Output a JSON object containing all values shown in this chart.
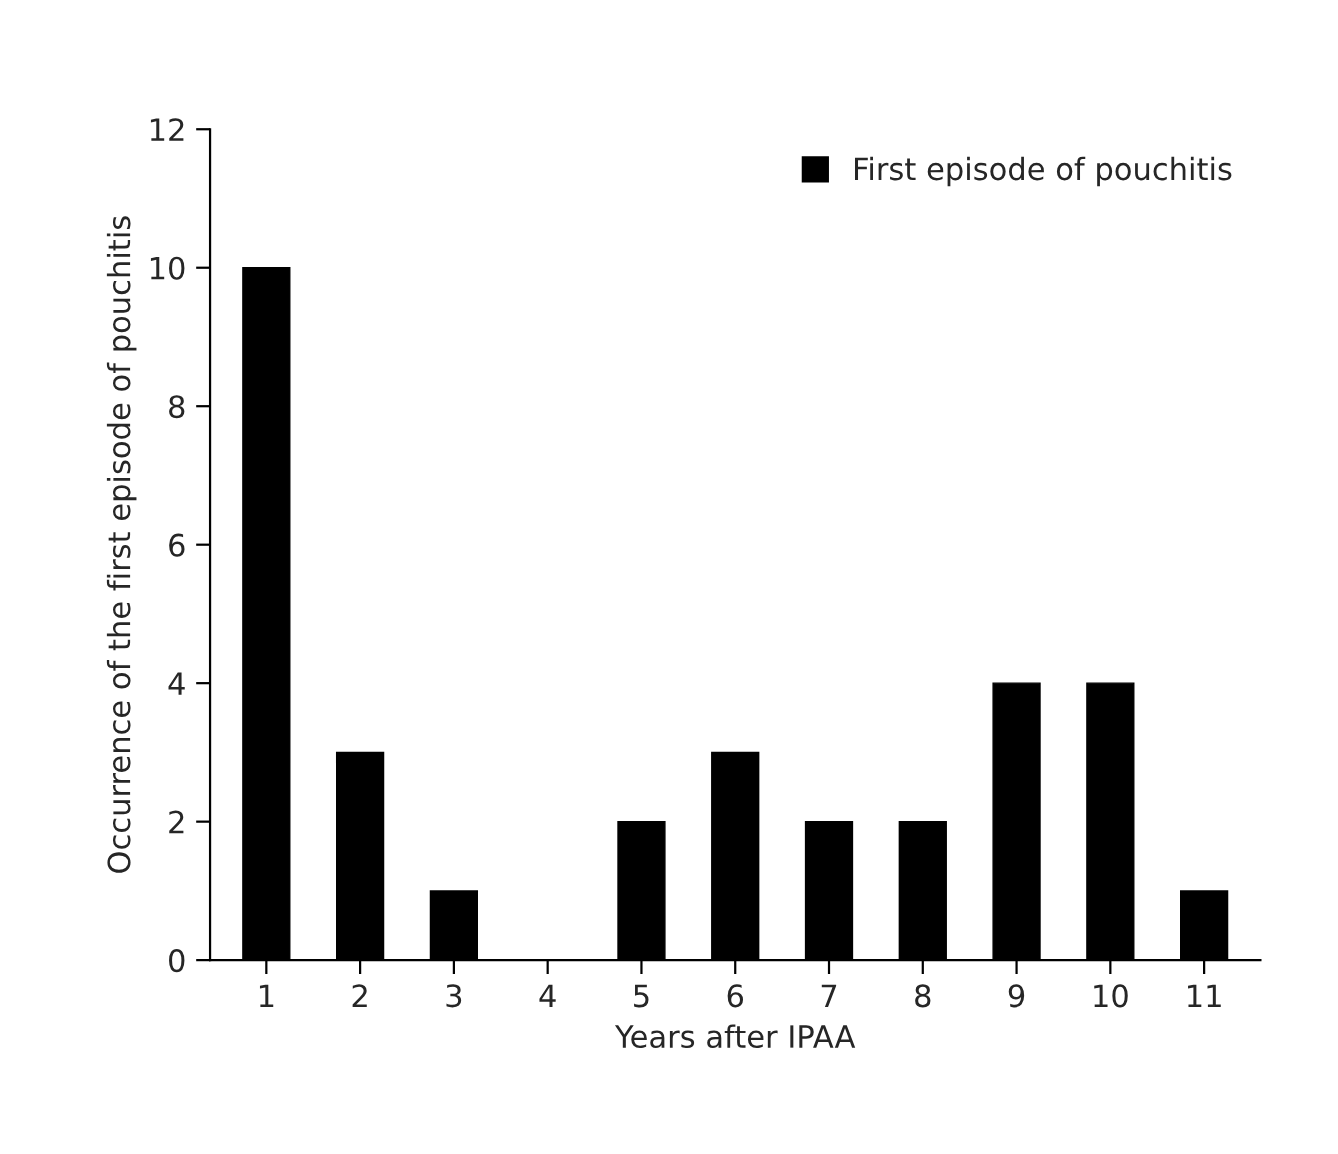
{
  "chart_data": {
    "type": "bar",
    "xlabel": "Years after IPAA",
    "ylabel": "Occurrence of the first episode of pouchitis",
    "categories": [
      "1",
      "2",
      "3",
      "4",
      "5",
      "6",
      "7",
      "8",
      "9",
      "10",
      "11"
    ],
    "series": [
      {
        "name": "First episode of pouchitis",
        "color": "#000000",
        "values": [
          10,
          3,
          1,
          0,
          2,
          3,
          2,
          2,
          4,
          4,
          1
        ]
      }
    ],
    "ylim": [
      0,
      12
    ],
    "yticks": [
      0,
      2,
      4,
      6,
      8,
      10,
      12
    ],
    "grid": false,
    "legend": "top right"
  }
}
